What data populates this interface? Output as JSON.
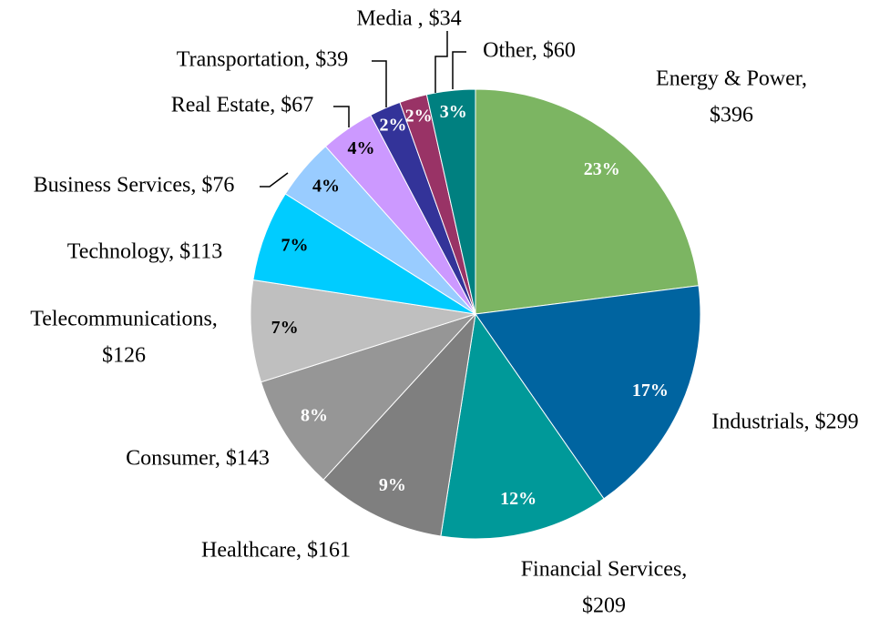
{
  "chart_data": {
    "type": "pie",
    "categories": [
      [
        "Energy & Power,",
        "$396"
      ],
      [
        "Industrials, $299"
      ],
      [
        "Financial Services,",
        "$209"
      ],
      [
        "Healthcare, $161"
      ],
      [
        "Consumer, $143"
      ],
      [
        "Telecommunications,",
        "$126"
      ],
      [
        "Technology, $113"
      ],
      [
        "Business Services, $76"
      ],
      [
        "Real Estate, $67"
      ],
      [
        "Transportation, $39"
      ],
      [
        "Media , $34"
      ],
      [
        "Other, $60"
      ]
    ],
    "values": [
      396,
      299,
      209,
      161,
      143,
      126,
      113,
      76,
      67,
      39,
      34,
      60
    ],
    "percent_labels": [
      "23%",
      "17%",
      "12%",
      "9%",
      "8%",
      "7%",
      "7%",
      "4%",
      "4%",
      "2%",
      "2%",
      "3%"
    ],
    "colors": [
      "#7cb562",
      "#0064a0",
      "#009999",
      "#7f7f7f",
      "#969696",
      "#bfbfbf",
      "#00ccff",
      "#99ccff",
      "#cc99ff",
      "#333399",
      "#993366",
      "#008080"
    ],
    "percent_label_colors": [
      "#ffffff",
      "#ffffff",
      "#ffffff",
      "#ffffff",
      "#ffffff",
      "#000000",
      "#000000",
      "#000000",
      "#000000",
      "#ffffff",
      "#ffffff",
      "#ffffff"
    ]
  }
}
